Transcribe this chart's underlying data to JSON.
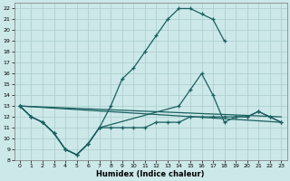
{
  "xlabel": "Humidex (Indice chaleur)",
  "xlim": [
    -0.5,
    23.5
  ],
  "ylim": [
    8,
    22.5
  ],
  "xticks": [
    0,
    1,
    2,
    3,
    4,
    5,
    6,
    7,
    8,
    9,
    10,
    11,
    12,
    13,
    14,
    15,
    16,
    17,
    18,
    19,
    20,
    21,
    22,
    23
  ],
  "yticks": [
    8,
    9,
    10,
    11,
    12,
    13,
    14,
    15,
    16,
    17,
    18,
    19,
    20,
    21,
    22
  ],
  "background_color": "#cce8e8",
  "grid_color": "#aacccc",
  "line_color": "#1a6060",
  "curve1_x": [
    0,
    1,
    2,
    3,
    4,
    5,
    6,
    7,
    8,
    9,
    10,
    11,
    12,
    13,
    14,
    15,
    16,
    17,
    18
  ],
  "curve1_y": [
    13,
    12,
    11.5,
    10.5,
    9,
    8.5,
    9.5,
    11,
    13,
    15.5,
    16.5,
    18,
    19.5,
    21,
    22,
    22,
    21.5,
    21,
    19
  ],
  "curve2_x": [
    0,
    1,
    2,
    3,
    4,
    5,
    6,
    7,
    14,
    15,
    16,
    17,
    18,
    19,
    20,
    21,
    22,
    23
  ],
  "curve2_y": [
    13,
    12,
    11.5,
    10.5,
    9,
    8.5,
    9.5,
    11,
    13,
    14.5,
    16,
    14,
    11.5,
    12,
    12,
    12.5,
    12,
    11.5
  ],
  "curve3_x": [
    0,
    1,
    2,
    3,
    4,
    5,
    6,
    7,
    8,
    9,
    10,
    11,
    12,
    13,
    14,
    15,
    16,
    17,
    18,
    19,
    20,
    21,
    22,
    23
  ],
  "curve3_y": [
    13,
    12,
    11.5,
    10.5,
    9,
    8.5,
    9.5,
    11,
    11,
    11,
    11,
    11,
    11.5,
    11.5,
    11.5,
    12,
    12,
    12,
    12,
    12,
    12,
    12.5,
    12,
    11.5
  ],
  "line1_x": [
    0,
    23
  ],
  "line1_y": [
    13,
    11.5
  ],
  "line2_x": [
    0,
    23
  ],
  "line2_y": [
    13,
    12.0
  ]
}
